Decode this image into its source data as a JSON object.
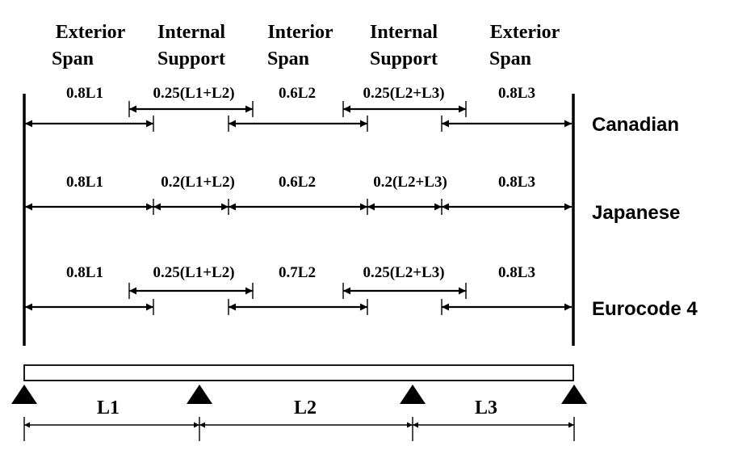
{
  "headers": [
    {
      "line1": "Exterior",
      "line2": "Span"
    },
    {
      "line1": "Internal",
      "line2": "Support"
    },
    {
      "line1": "Interior",
      "line2": "Span"
    },
    {
      "line1": "Internal",
      "line2": "Support"
    },
    {
      "line1": "Exterior",
      "line2": "Span"
    }
  ],
  "rows": [
    {
      "code": "Canadian",
      "labels": [
        "0.8L1",
        "0.25(L1+L2)",
        "0.6L2",
        "0.25(L2+L3)",
        "0.8L3"
      ]
    },
    {
      "code": "Japanese",
      "labels": [
        "0.8L1",
        "0.2(L1+L2)",
        "0.6L2",
        "0.2(L2+L3)",
        "0.8L3"
      ]
    },
    {
      "code": "Eurocode 4",
      "labels": [
        "0.8L1",
        "0.25(L1+L2)",
        "0.7L2",
        "0.25(L2+L3)",
        "0.8L3"
      ]
    }
  ],
  "spans": [
    "L1",
    "L2",
    "L3"
  ]
}
